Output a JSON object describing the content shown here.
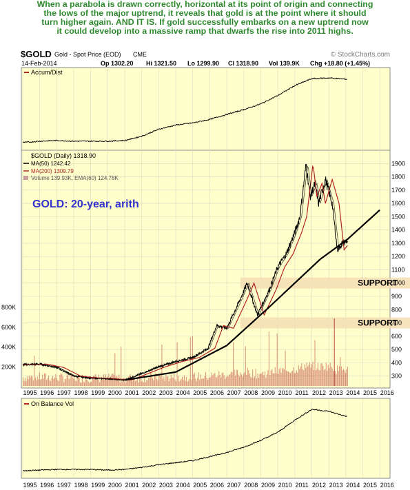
{
  "caption": {
    "lines": [
      "When a parabola is drawn correctly, horizontal at its point of origin and connecting",
      "the lows of the major uptrend, it reveals that gold is at the point where it should",
      "turn higher again. AND IT IS. If gold successfully embarks on a new uptrend now",
      "it could develop into a massive ramp that dwarfs the rise into 2011 highs."
    ]
  },
  "header": {
    "symbol": "$GOLD",
    "name": "Gold - Spot Price (EOD)",
    "exchange": "CME",
    "watermark": "© StockCharts.com",
    "date": "14-Feb-2014",
    "op": "Op 1302.20",
    "hi": "Hi 1321.50",
    "lo": "Lo 1299.90",
    "cl": "Cl 1318.90",
    "vol": "Vol 139.9K",
    "chg": "Chg +18.80 (+1.45%)"
  },
  "colors": {
    "panel_bg": "#ffffcc",
    "price": "#000000",
    "ma_fast": "#000000",
    "ma_slow": "#b22222",
    "volume": "#b22222",
    "support_band": "#f5deb3",
    "annotation": "#3333cc",
    "caption": "#2f8a2f",
    "grid": "#d8d8c0"
  },
  "chart_data": [
    {
      "type": "line",
      "panel": "indicator-top",
      "legend": "Accum/Dist",
      "x": [
        1995,
        1996,
        1997,
        1998,
        1999,
        2000,
        2001,
        2002,
        2003,
        2004,
        2005,
        2006,
        2007,
        2008,
        2009,
        2010,
        2011,
        2012,
        2013,
        2014.1
      ],
      "values": [
        0.05,
        0.07,
        0.08,
        0.07,
        0.07,
        0.07,
        0.08,
        0.14,
        0.24,
        0.3,
        0.33,
        0.38,
        0.45,
        0.52,
        0.6,
        0.72,
        0.86,
        0.96,
        0.97,
        0.95
      ]
    },
    {
      "type": "line",
      "panel": "price",
      "title": "GOLD: 20-year, arith",
      "legend": {
        "price": "$GOLD (Daily) 1318.90",
        "ma50": "MA(50) 1242.42",
        "ma200": "MA(200) 1309.79",
        "volume": "Volume 139.93K, EMA(60) 124.78K"
      },
      "x": [
        1995,
        1996,
        1997,
        1998,
        1999,
        2000,
        2001,
        2002,
        2003,
        2004,
        2005,
        2005.9,
        2006.4,
        2007,
        2007.8,
        2008.2,
        2008.8,
        2009.5,
        2010,
        2010.5,
        2011,
        2011.3,
        2011.67,
        2011.9,
        2012.2,
        2012.4,
        2012.8,
        2013.2,
        2013.5,
        2013.8,
        2014.1
      ],
      "price": [
        385,
        390,
        365,
        300,
        285,
        280,
        270,
        320,
        370,
        410,
        440,
        510,
        680,
        660,
        880,
        1000,
        760,
        950,
        1120,
        1220,
        1380,
        1500,
        1900,
        1650,
        1750,
        1600,
        1780,
        1600,
        1250,
        1300,
        1319
      ],
      "x_labels": [
        "1995",
        "1996",
        "1997",
        "1998",
        "1999",
        "2000",
        "2001",
        "2002",
        "2003",
        "2004",
        "2005",
        "2006",
        "2007",
        "2008",
        "2009",
        "2010",
        "2011",
        "2012",
        "2013",
        "2014",
        "2015",
        "2016"
      ],
      "right_ticks": [
        300,
        400,
        500,
        600,
        700,
        800,
        900,
        1000,
        1100,
        1200,
        1300,
        1400,
        1500,
        1600,
        1700,
        1800,
        1900
      ],
      "volume_ticks": [
        "200K",
        "400K",
        "600K",
        "800K"
      ],
      "volume_tick_values": [
        200,
        400,
        600,
        800
      ],
      "parabola": {
        "x": [
          2001,
          2004,
          2007,
          2009.5,
          2011,
          2012.5,
          2014.1,
          2016
        ],
        "y": [
          270,
          330,
          530,
          820,
          1000,
          1180,
          1330,
          1550
        ]
      },
      "support": [
        {
          "label": "SUPPORT",
          "value": 1000
        },
        {
          "label": "SUPPORT",
          "value": 700
        }
      ],
      "ylim": [
        210,
        2000
      ]
    },
    {
      "type": "line",
      "panel": "indicator-bottom",
      "legend": "On Balance Vol",
      "x": [
        1995,
        1996,
        1997,
        1998,
        1999,
        2000,
        2001,
        2002,
        2003,
        2004,
        2005,
        2006,
        2007,
        2008,
        2009,
        2010,
        2011,
        2012,
        2013,
        2014.1
      ],
      "values": [
        0.05,
        0.06,
        0.07,
        0.07,
        0.07,
        0.06,
        0.07,
        0.1,
        0.14,
        0.17,
        0.2,
        0.26,
        0.32,
        0.4,
        0.5,
        0.62,
        0.8,
        0.96,
        0.93,
        0.85
      ]
    }
  ]
}
